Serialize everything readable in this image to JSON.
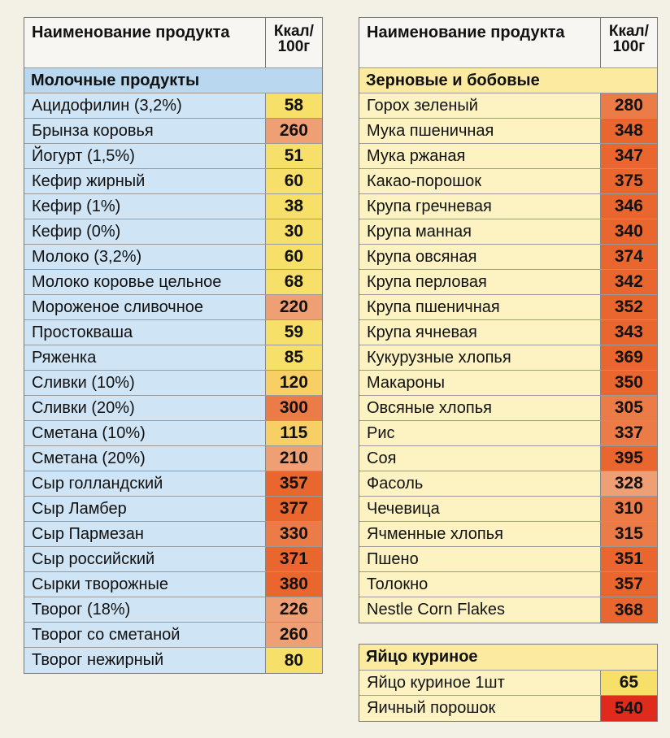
{
  "colors": {
    "very_low": "#f7e06a",
    "low": "#f7cf64",
    "mid": "#ef9f74",
    "high": "#eb7b47",
    "very_high": "#e9672f",
    "extreme": "#e02a1c"
  },
  "left": {
    "header": {
      "name": "Наименование продукта",
      "kcal": "Ккал/ 100г"
    },
    "category": "Молочные продукты",
    "items": [
      {
        "name": "Ацидофилин (3,2%)",
        "kcal": "58",
        "color": "#f7e06a"
      },
      {
        "name": "Брынза коровья",
        "kcal": "260",
        "color": "#ef9f74"
      },
      {
        "name": "Йогурт (1,5%)",
        "kcal": "51",
        "color": "#f7e06a"
      },
      {
        "name": "Кефир жирный",
        "kcal": "60",
        "color": "#f7e06a"
      },
      {
        "name": "Кефир (1%)",
        "kcal": "38",
        "color": "#f7e06a"
      },
      {
        "name": "Кефир (0%)",
        "kcal": "30",
        "color": "#f7e06a"
      },
      {
        "name": "Молоко (3,2%)",
        "kcal": "60",
        "color": "#f7e06a"
      },
      {
        "name": "Молоко коровье цельное",
        "kcal": "68",
        "color": "#f7e06a"
      },
      {
        "name": "Мороженое сливочное",
        "kcal": "220",
        "color": "#ef9f74"
      },
      {
        "name": "Простокваша",
        "kcal": "59",
        "color": "#f7e06a"
      },
      {
        "name": "Ряженка",
        "kcal": "85",
        "color": "#f7e06a"
      },
      {
        "name": "Сливки (10%)",
        "kcal": "120",
        "color": "#f7cf64"
      },
      {
        "name": "Сливки (20%)",
        "kcal": "300",
        "color": "#eb7b47"
      },
      {
        "name": "Сметана (10%)",
        "kcal": "115",
        "color": "#f7cf64"
      },
      {
        "name": "Сметана (20%)",
        "kcal": "210",
        "color": "#ef9f74"
      },
      {
        "name": "Сыр голландский",
        "kcal": "357",
        "color": "#e9672f"
      },
      {
        "name": "Сыр Ламбер",
        "kcal": "377",
        "color": "#e9672f"
      },
      {
        "name": "Сыр Пармезан",
        "kcal": "330",
        "color": "#eb7b47"
      },
      {
        "name": "Сыр российский",
        "kcal": "371",
        "color": "#e9672f"
      },
      {
        "name": "Сырки творожные",
        "kcal": "380",
        "color": "#e9672f"
      },
      {
        "name": "Творог (18%)",
        "kcal": "226",
        "color": "#ef9f74"
      },
      {
        "name": "Творог со сметаной",
        "kcal": "260",
        "color": "#ef9f74"
      },
      {
        "name": "Творог нежирный",
        "kcal": "80",
        "color": "#f7e06a"
      }
    ]
  },
  "right": {
    "header": {
      "name": "Наименование продукта",
      "kcal": "Ккал/ 100г"
    },
    "category": "Зерновые и бобовые",
    "items": [
      {
        "name": "Горох зеленый",
        "kcal": "280",
        "color": "#eb7b47"
      },
      {
        "name": "Мука пшеничная",
        "kcal": "348",
        "color": "#e9672f"
      },
      {
        "name": "Мука ржаная",
        "kcal": "347",
        "color": "#e9672f"
      },
      {
        "name": "Какао-порошок",
        "kcal": "375",
        "color": "#e9672f"
      },
      {
        "name": "Крупа гречневая",
        "kcal": "346",
        "color": "#e9672f"
      },
      {
        "name": "Крупа манная",
        "kcal": "340",
        "color": "#e9672f"
      },
      {
        "name": "Крупа овсяная",
        "kcal": "374",
        "color": "#e9672f"
      },
      {
        "name": "Крупа перловая",
        "kcal": "342",
        "color": "#e9672f"
      },
      {
        "name": "Крупа пшеничная",
        "kcal": "352",
        "color": "#e9672f"
      },
      {
        "name": "Крупа ячневая",
        "kcal": "343",
        "color": "#e9672f"
      },
      {
        "name": "Кукурузные хлопья",
        "kcal": "369",
        "color": "#e9672f"
      },
      {
        "name": "Макароны",
        "kcal": "350",
        "color": "#e9672f"
      },
      {
        "name": "Овсяные хлопья",
        "kcal": "305",
        "color": "#eb7b47"
      },
      {
        "name": "Рис",
        "kcal": "337",
        "color": "#eb7b47"
      },
      {
        "name": "Соя",
        "kcal": "395",
        "color": "#e9672f"
      },
      {
        "name": "Фасоль",
        "kcal": "328",
        "color": "#ef9f74"
      },
      {
        "name": "Чечевица",
        "kcal": "310",
        "color": "#eb7b47"
      },
      {
        "name": "Ячменные хлопья",
        "kcal": "315",
        "color": "#eb7b47"
      },
      {
        "name": "Пшено",
        "kcal": "351",
        "color": "#e9672f"
      },
      {
        "name": "Толокно",
        "kcal": "357",
        "color": "#e9672f"
      },
      {
        "name": "Nestle Corn Flakes",
        "kcal": "368",
        "color": "#e9672f"
      }
    ]
  },
  "eggs": {
    "category": "Яйцо куриное",
    "items": [
      {
        "name": "Яйцо куриное 1шт",
        "kcal": "65",
        "color": "#f7e06a"
      },
      {
        "name": "Яичный порошок",
        "kcal": "540",
        "color": "#e02a1c"
      }
    ]
  }
}
